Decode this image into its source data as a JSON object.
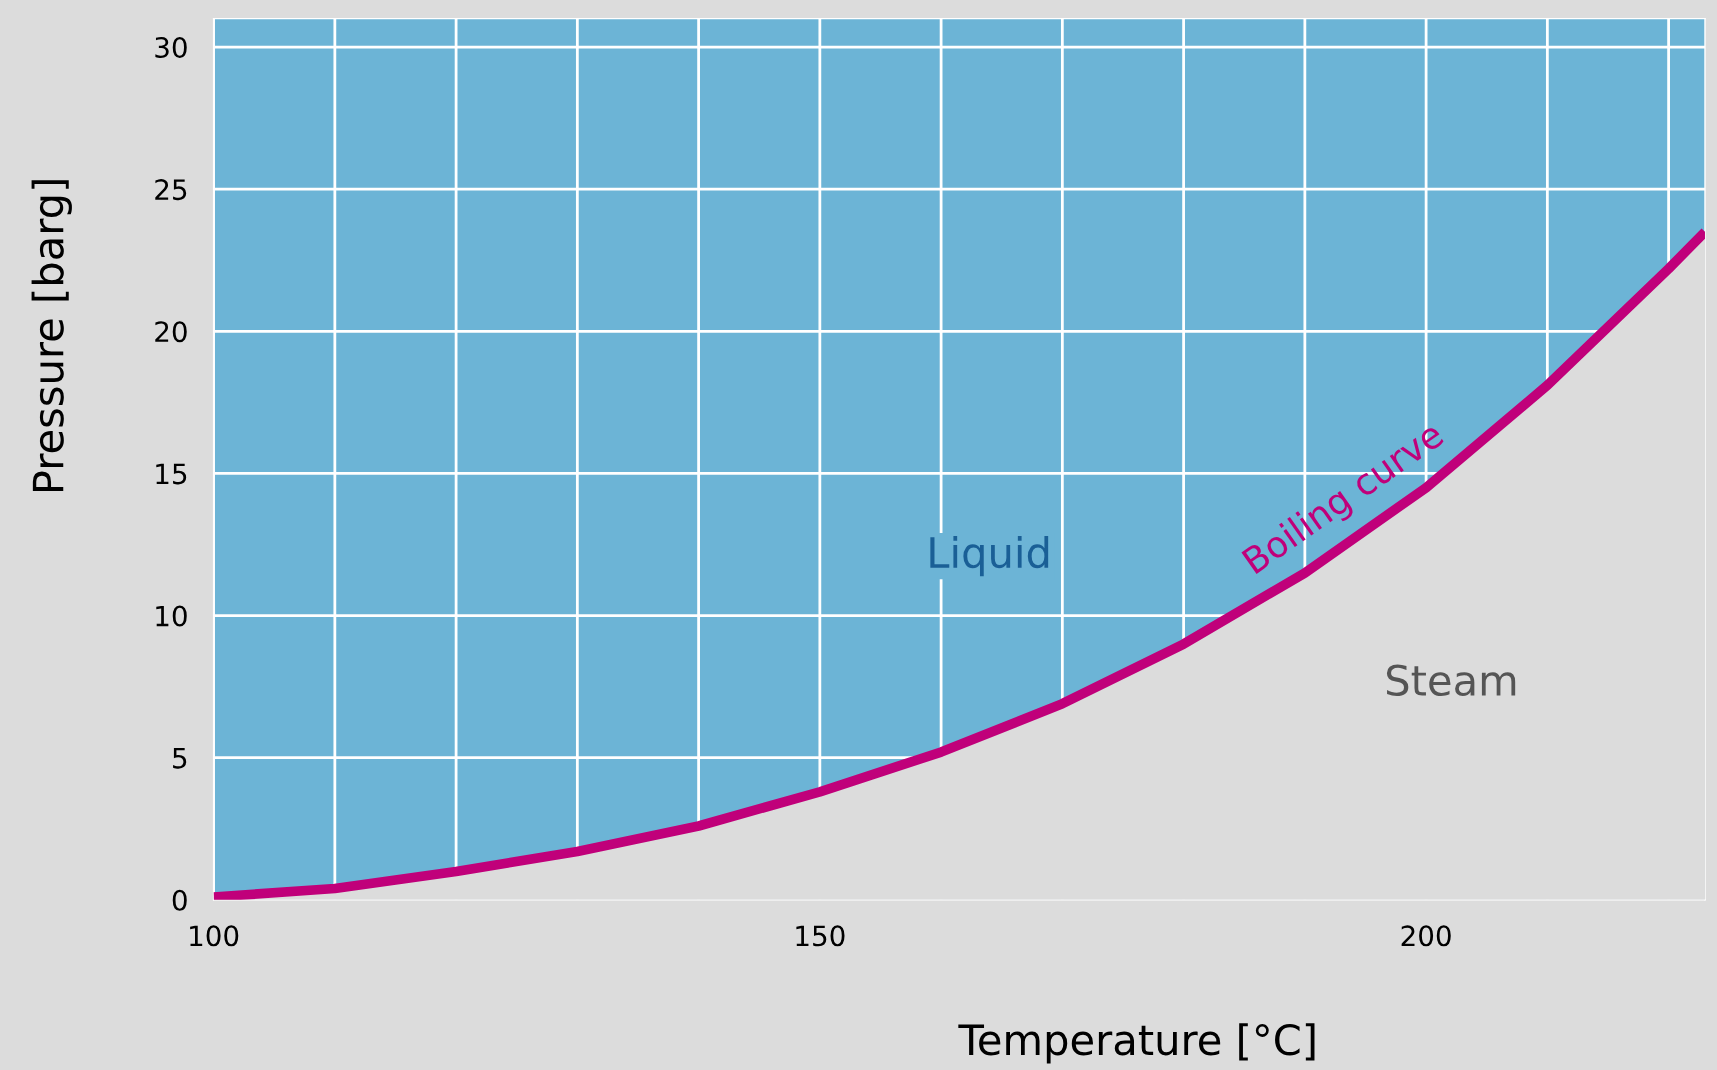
{
  "chart_data": {
    "type": "area",
    "xlabel": "Temperature [°C]",
    "ylabel": "Pressure [barg]",
    "annotations": [
      "Liquid",
      "Steam"
    ],
    "series": [
      {
        "name": "Boiling curve",
        "color": "#c0007a",
        "x": [
          100,
          110,
          120,
          130,
          140,
          150,
          160,
          170,
          180,
          190,
          200,
          210,
          220,
          223
        ],
        "values": [
          0.1,
          0.4,
          1.0,
          1.7,
          2.6,
          3.8,
          5.2,
          6.9,
          9.0,
          11.5,
          14.5,
          18.1,
          22.2,
          23.5
        ]
      }
    ],
    "xlim": [
      100,
      223
    ],
    "ylim": [
      0,
      31
    ],
    "xticks": [
      100,
      {
        "value": 110,
        "label": null
      },
      {
        "value": 120,
        "label": null
      },
      {
        "value": 130,
        "label": null
      },
      {
        "value": 140,
        "label": null
      },
      150,
      {
        "value": 160,
        "label": null
      },
      {
        "value": 170,
        "label": null
      },
      {
        "value": 180,
        "label": null
      },
      {
        "value": 190,
        "label": null
      },
      200,
      {
        "value": 210,
        "label": null
      },
      {
        "value": 220,
        "label": null
      }
    ],
    "yticks": [
      0,
      5,
      10,
      15,
      20,
      25,
      30
    ],
    "grid": true,
    "legend": false
  }
}
